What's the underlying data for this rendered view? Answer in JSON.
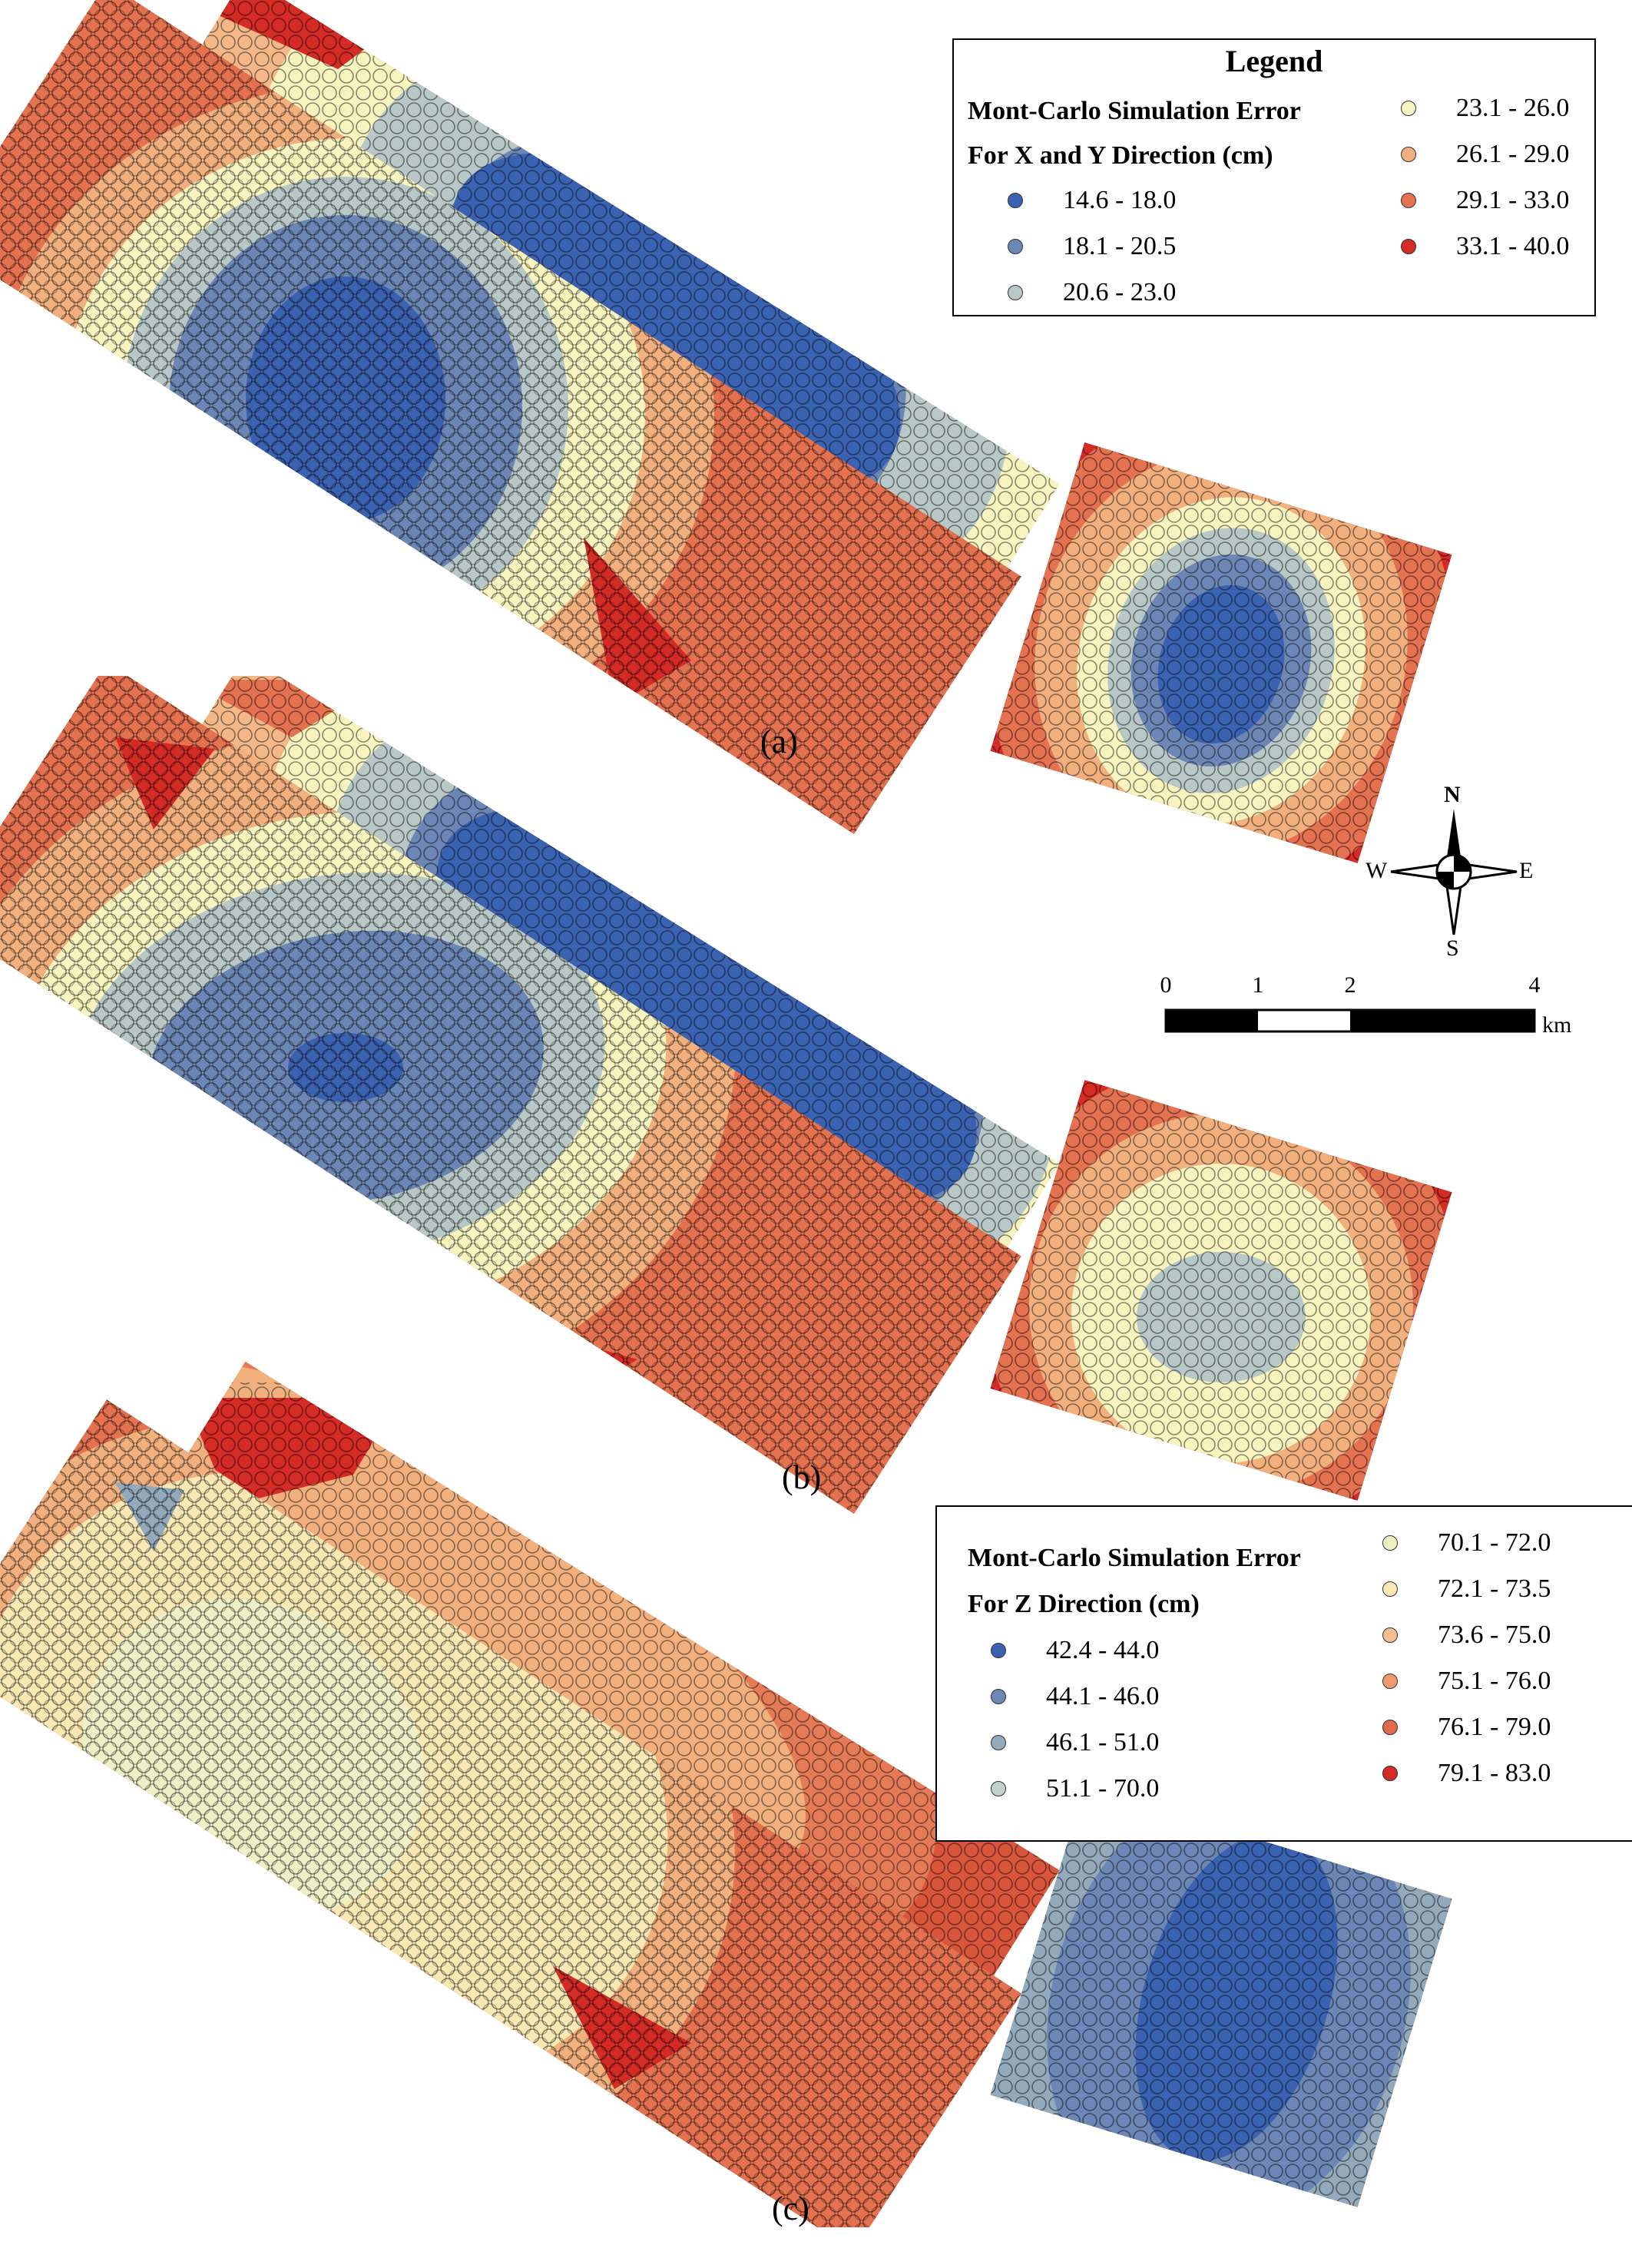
{
  "panels": [
    {
      "label": "(a)",
      "classes": [
        "#3f6cb8",
        "#6c8ab7",
        "#b3c2c7",
        "#f5f1c4",
        "#f2b68a",
        "#e67b5c",
        "#c93a2e"
      ]
    },
    {
      "label": "(b)",
      "classes": [
        "#3f6cb8",
        "#6c8ab7",
        "#b3c2c7",
        "#f5f1c4",
        "#f2b68a",
        "#e67b5c",
        "#c93a2e"
      ]
    },
    {
      "label": "(c)",
      "classes": [
        "#3f6cb8",
        "#6c8ab7",
        "#b3c2c7",
        "#f5f1c4",
        "#f2b68a",
        "#e67b5c",
        "#c93a2e"
      ]
    }
  ],
  "legend_xy": {
    "title": "Legend",
    "heading_line1": "Mont-Carlo Simulation Error",
    "heading_line2": "For X and Y Direction (cm)",
    "items": [
      {
        "label": "14.6 - 18.0",
        "color": "#3b62b0"
      },
      {
        "label": "18.1 - 20.5",
        "color": "#6c86b5"
      },
      {
        "label": "20.6 - 23.0",
        "color": "#b8c8c6"
      },
      {
        "label": "23.1 - 26.0",
        "color": "#f7f4c0"
      },
      {
        "label": "26.1 - 29.0",
        "color": "#f2b07e"
      },
      {
        "label": "29.1 - 33.0",
        "color": "#e4714f"
      },
      {
        "label": "33.1 - 40.0",
        "color": "#d42b26"
      }
    ]
  },
  "legend_z": {
    "heading_line1": "Mont-Carlo Simulation Error",
    "heading_line2": "For Z Direction (cm)",
    "items": [
      {
        "label": "42.4 - 44.0",
        "color": "#3b62b0"
      },
      {
        "label": "44.1 - 46.0",
        "color": "#6c86b5"
      },
      {
        "label": "46.1 - 51.0",
        "color": "#93a9bc"
      },
      {
        "label": "51.1 - 70.0",
        "color": "#c3d1c8"
      },
      {
        "label": "70.1 - 72.0",
        "color": "#eef0c6"
      },
      {
        "label": "72.1 - 73.5",
        "color": "#f9e8b4"
      },
      {
        "label": "73.6 - 75.0",
        "color": "#f4be90"
      },
      {
        "label": "75.1 - 76.0",
        "color": "#ee9a6e"
      },
      {
        "label": "76.1 - 79.0",
        "color": "#e06a4a"
      },
      {
        "label": "79.1 - 83.0",
        "color": "#d42b26"
      }
    ]
  },
  "compass": {
    "n": "N",
    "s": "S",
    "e": "E",
    "w": "W"
  },
  "scale_bar": {
    "ticks": [
      "0",
      "1",
      "2",
      "4"
    ],
    "unit": "km"
  }
}
